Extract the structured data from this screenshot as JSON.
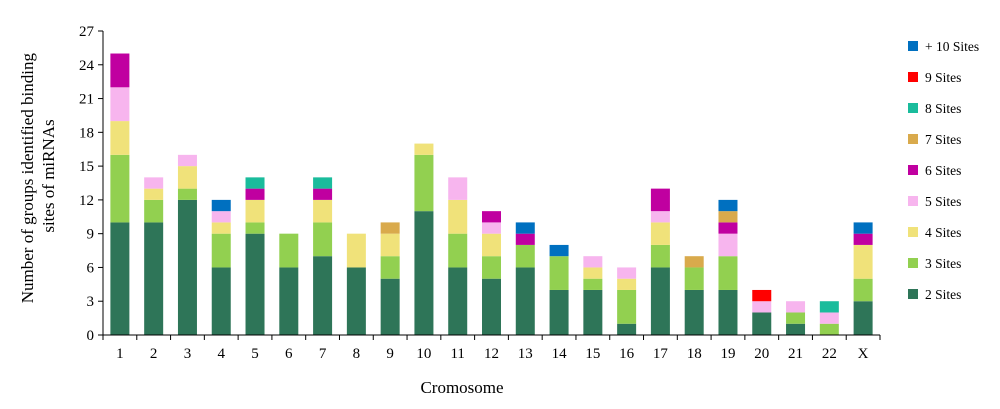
{
  "chart_data": {
    "type": "bar",
    "stacked": true,
    "title": "",
    "xlabel": "Cromosome",
    "ylabel": "Number of groups identified binding sites of miRNAs",
    "ylim": [
      0,
      27
    ],
    "yticks": [
      0,
      3,
      6,
      9,
      12,
      15,
      18,
      21,
      24,
      27
    ],
    "grid": false,
    "legend_position": "right",
    "categories": [
      "1",
      "2",
      "3",
      "4",
      "5",
      "6",
      "7",
      "8",
      "9",
      "10",
      "11",
      "12",
      "13",
      "14",
      "15",
      "16",
      "17",
      "18",
      "19",
      "20",
      "21",
      "22",
      "X"
    ],
    "series": [
      {
        "name": "2 Sites",
        "color": "#2e7558",
        "values": [
          10,
          10,
          12,
          6,
          9,
          6,
          7,
          6,
          5,
          11,
          6,
          5,
          6,
          4,
          4,
          1,
          6,
          4,
          4,
          2,
          1,
          0,
          3
        ]
      },
      {
        "name": "3 Sites",
        "color": "#92d050",
        "values": [
          6,
          2,
          1,
          3,
          1,
          3,
          3,
          0,
          2,
          5,
          3,
          2,
          2,
          3,
          1,
          3,
          2,
          2,
          3,
          0,
          1,
          1,
          2
        ]
      },
      {
        "name": "4 Sites",
        "color": "#f0e27a",
        "values": [
          3,
          1,
          2,
          1,
          2,
          0,
          2,
          3,
          2,
          1,
          3,
          2,
          0,
          0,
          1,
          1,
          2,
          0,
          0,
          0,
          0,
          0,
          3
        ]
      },
      {
        "name": "5 Sites",
        "color": "#f7b5ee",
        "values": [
          3,
          1,
          1,
          1,
          0,
          0,
          0,
          0,
          0,
          0,
          2,
          1,
          0,
          0,
          1,
          1,
          1,
          0,
          2,
          1,
          1,
          1,
          0
        ]
      },
      {
        "name": "6 Sites",
        "color": "#c000a0",
        "values": [
          3,
          0,
          0,
          0,
          1,
          0,
          1,
          0,
          0,
          0,
          0,
          1,
          1,
          0,
          0,
          0,
          2,
          0,
          1,
          0,
          0,
          0,
          1
        ]
      },
      {
        "name": "7 Sites",
        "color": "#d9aa4c",
        "values": [
          0,
          0,
          0,
          0,
          0,
          0,
          0,
          0,
          1,
          0,
          0,
          0,
          0,
          0,
          0,
          0,
          0,
          1,
          1,
          0,
          0,
          0,
          0
        ]
      },
      {
        "name": "8 Sites",
        "color": "#1abc9c",
        "values": [
          0,
          0,
          0,
          0,
          1,
          0,
          1,
          0,
          0,
          0,
          0,
          0,
          0,
          0,
          0,
          0,
          0,
          0,
          0,
          0,
          0,
          1,
          0
        ]
      },
      {
        "name": "9 Sites",
        "color": "#ff0000",
        "values": [
          0,
          0,
          0,
          0,
          0,
          0,
          0,
          0,
          0,
          0,
          0,
          0,
          0,
          0,
          0,
          0,
          0,
          0,
          0,
          1,
          0,
          0,
          0
        ]
      },
      {
        "name": "+ 10 Sites",
        "color": "#0070c0",
        "values": [
          0,
          0,
          0,
          1,
          0,
          0,
          0,
          0,
          0,
          0,
          0,
          0,
          1,
          1,
          0,
          0,
          0,
          0,
          1,
          0,
          0,
          0,
          1
        ]
      }
    ]
  }
}
